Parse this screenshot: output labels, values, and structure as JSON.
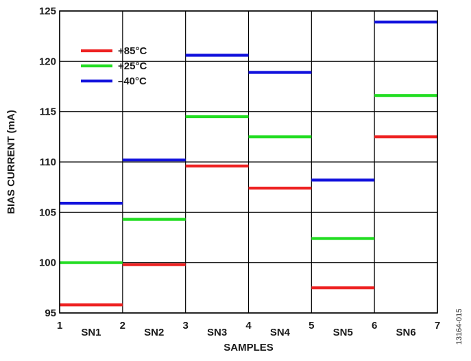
{
  "chart_data": {
    "type": "line",
    "title": "",
    "xlabel": "SAMPLES",
    "ylabel": "BIAS CURRENT (mA)",
    "xlim": [
      1,
      7
    ],
    "ylim": [
      95,
      125
    ],
    "x_ticks": [
      "1",
      "2",
      "3",
      "4",
      "5",
      "6",
      "7"
    ],
    "y_ticks": [
      "95",
      "100",
      "105",
      "110",
      "115",
      "120",
      "125"
    ],
    "categories": [
      "SN1",
      "SN2",
      "SN3",
      "SN4",
      "SN5",
      "SN6"
    ],
    "grid": true,
    "legend_position": "top-left",
    "series": [
      {
        "name": "+85°C",
        "color": "#ee2222",
        "values": [
          95.8,
          99.8,
          109.6,
          107.4,
          97.5,
          112.5
        ]
      },
      {
        "name": "+25°C",
        "color": "#22dd22",
        "values": [
          100.0,
          104.3,
          114.5,
          112.5,
          102.4,
          116.6
        ]
      },
      {
        "name": "–40°C",
        "color": "#1111dd",
        "values": [
          105.9,
          110.2,
          120.6,
          118.9,
          108.2,
          123.9
        ]
      }
    ]
  },
  "figure_id": "13164-015"
}
